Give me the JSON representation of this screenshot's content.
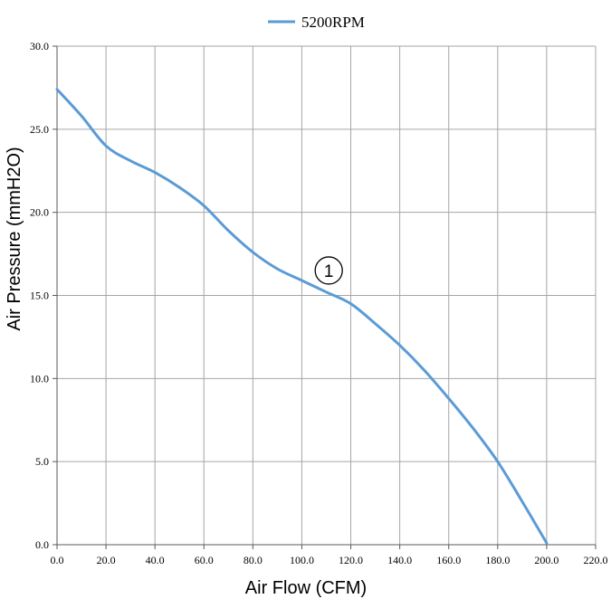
{
  "chart_data": {
    "type": "line",
    "xlabel": "Air Flow (CFM)",
    "ylabel": "Air Pressure (mmH2O)",
    "xlim": [
      0,
      220
    ],
    "ylim": [
      0,
      30
    ],
    "xticks": [
      "0.0",
      "20.0",
      "40.0",
      "60.0",
      "80.0",
      "100.0",
      "120.0",
      "140.0",
      "160.0",
      "180.0",
      "200.0",
      "220.0"
    ],
    "yticks": [
      "0.0",
      "5.0",
      "10.0",
      "15.0",
      "20.0",
      "25.0",
      "30.0"
    ],
    "grid": true,
    "legend_position": "top-center",
    "series": [
      {
        "name": "5200RPM",
        "color": "#5b9bd5",
        "x": [
          0,
          10,
          20,
          30,
          40,
          50,
          60,
          70,
          80,
          90,
          100,
          110,
          120,
          130,
          140,
          150,
          160,
          170,
          180,
          190,
          200
        ],
        "y": [
          27.4,
          25.8,
          24.0,
          23.1,
          22.4,
          21.5,
          20.4,
          18.9,
          17.6,
          16.6,
          15.9,
          15.2,
          14.5,
          13.3,
          12.0,
          10.5,
          8.8,
          7.0,
          5.0,
          2.6,
          0.1
        ]
      }
    ],
    "annotations": [
      {
        "text": "1",
        "x": 111,
        "y": 16.5
      }
    ]
  }
}
